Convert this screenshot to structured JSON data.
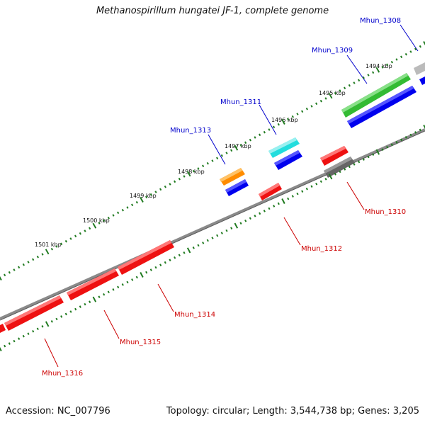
{
  "title": "Methanospirillum hungatei JF-1, complete genome",
  "footer": {
    "accession": "Accession: NC_007796",
    "summary": "Topology: circular; Length: 3,544,738 bp; Genes: 3,205"
  },
  "colors": {
    "backbone": "#8a8a8a",
    "ticks": "#1f7a1f",
    "label_forward": "#0000cc",
    "label_reverse": "#cc0000",
    "gene_green": "#33bb33",
    "gene_blue": "#0000ee",
    "gene_cyan": "#22dddd",
    "gene_orange": "#ff8c00",
    "gene_red": "#ee1111",
    "gene_gray": "#666666",
    "gene_lightgray": "#bbbbbb"
  },
  "kbp_labels": [
    "1494 kbp",
    "1495 kbp",
    "1496 kbp",
    "1497 kbp",
    "1498 kbp",
    "1499 kbp",
    "1500 kbp",
    "1501 kbp"
  ],
  "genes": [
    {
      "label": "Mhun_1308",
      "strand": "forward",
      "color": "gene_lightgray",
      "icon": "gene-arrow"
    },
    {
      "label": "Mhun_1309",
      "strand": "forward",
      "color": "gene_green",
      "icon": "gene-arrow"
    },
    {
      "label": "Mhun_1310",
      "strand": "reverse",
      "color": "gene_gray",
      "icon": "gene-arrow"
    },
    {
      "label": "Mhun_1311",
      "strand": "forward",
      "color": "gene_cyan",
      "icon": "gene-arrow"
    },
    {
      "label": "Mhun_1312",
      "strand": "reverse",
      "color": "gene_red",
      "icon": "gene-arrow"
    },
    {
      "label": "Mhun_1313",
      "strand": "forward",
      "color": "gene_orange",
      "icon": "gene-arrow"
    },
    {
      "label": "Mhun_1314",
      "strand": "reverse",
      "color": "gene_red",
      "icon": "gene-arrow"
    },
    {
      "label": "Mhun_1315",
      "strand": "reverse",
      "color": "gene_red",
      "icon": "gene-arrow"
    },
    {
      "label": "Mhun_1316",
      "strand": "reverse",
      "color": "gene_red",
      "icon": "gene-arrow"
    }
  ]
}
